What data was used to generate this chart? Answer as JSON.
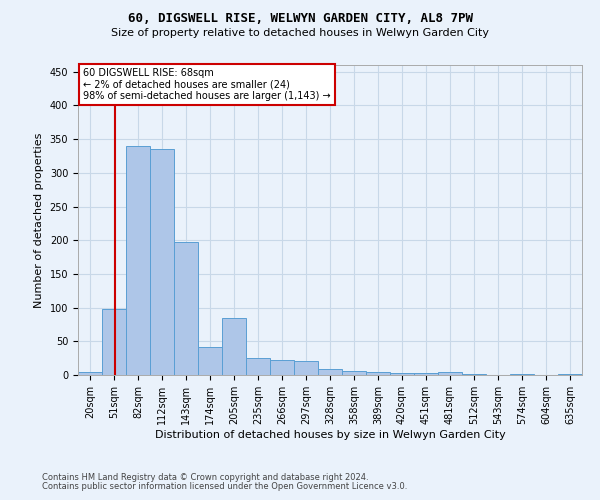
{
  "title": "60, DIGSWELL RISE, WELWYN GARDEN CITY, AL8 7PW",
  "subtitle": "Size of property relative to detached houses in Welwyn Garden City",
  "xlabel": "Distribution of detached houses by size in Welwyn Garden City",
  "ylabel": "Number of detached properties",
  "footer1": "Contains HM Land Registry data © Crown copyright and database right 2024.",
  "footer2": "Contains public sector information licensed under the Open Government Licence v3.0.",
  "categories": [
    "20sqm",
    "51sqm",
    "82sqm",
    "112sqm",
    "143sqm",
    "174sqm",
    "205sqm",
    "235sqm",
    "266sqm",
    "297sqm",
    "328sqm",
    "358sqm",
    "389sqm",
    "420sqm",
    "451sqm",
    "481sqm",
    "512sqm",
    "543sqm",
    "574sqm",
    "604sqm",
    "635sqm"
  ],
  "values": [
    5,
    98,
    340,
    336,
    197,
    42,
    84,
    25,
    23,
    21,
    9,
    6,
    5,
    3,
    3,
    5,
    1,
    0,
    2,
    0,
    2
  ],
  "bar_color": "#aec6e8",
  "bar_edge_color": "#5a9fd4",
  "grid_color": "#c8d8e8",
  "background_color": "#eaf2fb",
  "property_line_color": "#cc0000",
  "annotation_text": "60 DIGSWELL RISE: 68sqm\n← 2% of detached houses are smaller (24)\n98% of semi-detached houses are larger (1,143) →",
  "annotation_box_color": "#ffffff",
  "annotation_box_edge": "#cc0000",
  "ylim": [
    0,
    460
  ],
  "yticks": [
    0,
    50,
    100,
    150,
    200,
    250,
    300,
    350,
    400,
    450
  ],
  "title_fontsize": 9,
  "subtitle_fontsize": 8,
  "ylabel_fontsize": 8,
  "xlabel_fontsize": 8,
  "tick_fontsize": 7,
  "footer_fontsize": 6,
  "annot_fontsize": 7
}
